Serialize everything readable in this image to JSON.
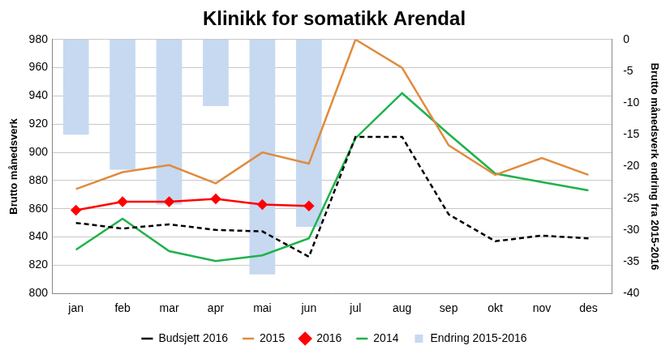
{
  "chart_data": {
    "type": "line",
    "title": "Klinikk for somatikk Arendal",
    "y_label": "Brutto månedsverk",
    "y2_label": "Brutto månedsverk endring fra 2015-2016",
    "categories": [
      "jan",
      "feb",
      "mar",
      "apr",
      "mai",
      "jun",
      "jul",
      "aug",
      "sep",
      "okt",
      "nov",
      "des"
    ],
    "ylim": [
      800,
      980
    ],
    "yticks": [
      800,
      820,
      840,
      860,
      880,
      900,
      920,
      940,
      960,
      980
    ],
    "y2lim": [
      -40,
      0
    ],
    "y2ticks": [
      -40,
      -35,
      -30,
      -25,
      -20,
      -15,
      -10,
      -5,
      0
    ],
    "grid": true,
    "legend": "bottom",
    "series": [
      {
        "name": "Endring 2015-2016",
        "type": "bar",
        "axis": "y2",
        "color": "#c6d9f1",
        "values": [
          -15,
          -20.5,
          -26,
          -10.5,
          -37,
          -29.5,
          null,
          null,
          null,
          null,
          null,
          null
        ]
      },
      {
        "name": "Budsjett 2016",
        "type": "line",
        "color": "#000000",
        "line_style": "dashed",
        "marker": "none",
        "values": [
          850,
          846,
          849,
          845,
          844,
          826,
          911,
          911,
          856,
          837,
          841,
          839
        ]
      },
      {
        "name": "2015",
        "type": "line",
        "color": "#e08b3e",
        "line_style": "solid",
        "marker": "none",
        "values": [
          874,
          886,
          891,
          878,
          900,
          892,
          980,
          960,
          905,
          884,
          896,
          884
        ]
      },
      {
        "name": "2016",
        "type": "line",
        "color": "#ff0000",
        "line_style": "solid",
        "marker": "diamond",
        "values": [
          859,
          865,
          865,
          867,
          863,
          862,
          null,
          null,
          null,
          null,
          null,
          null
        ]
      },
      {
        "name": "2014",
        "type": "line",
        "color": "#1fb24a",
        "line_style": "solid",
        "marker": "none",
        "values": [
          831,
          853,
          830,
          823,
          827,
          839,
          910,
          942,
          913,
          885,
          879,
          873
        ]
      }
    ]
  }
}
